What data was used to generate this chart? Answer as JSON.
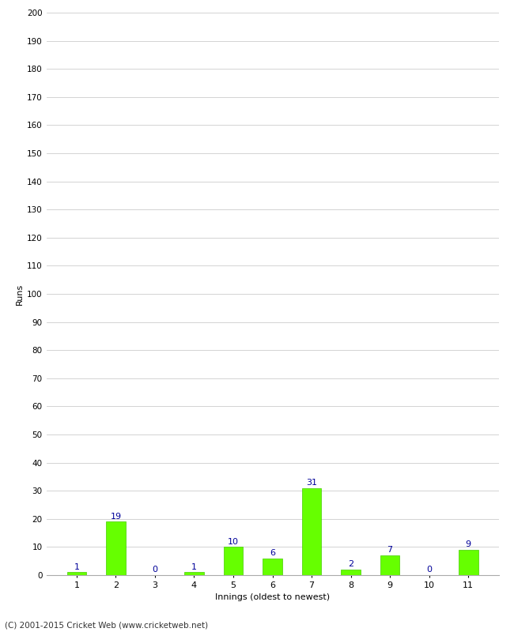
{
  "xlabel": "Innings (oldest to newest)",
  "ylabel": "Runs",
  "categories": [
    1,
    2,
    3,
    4,
    5,
    6,
    7,
    8,
    9,
    10,
    11
  ],
  "values": [
    1,
    19,
    0,
    1,
    10,
    6,
    31,
    2,
    7,
    0,
    9
  ],
  "bar_color": "#66ff00",
  "bar_edge_color": "#44cc00",
  "label_color": "#000099",
  "ylim": [
    0,
    200
  ],
  "ytick_step": 10,
  "background_color": "#ffffff",
  "grid_color": "#cccccc",
  "footer": "(C) 2001-2015 Cricket Web (www.cricketweb.net)"
}
